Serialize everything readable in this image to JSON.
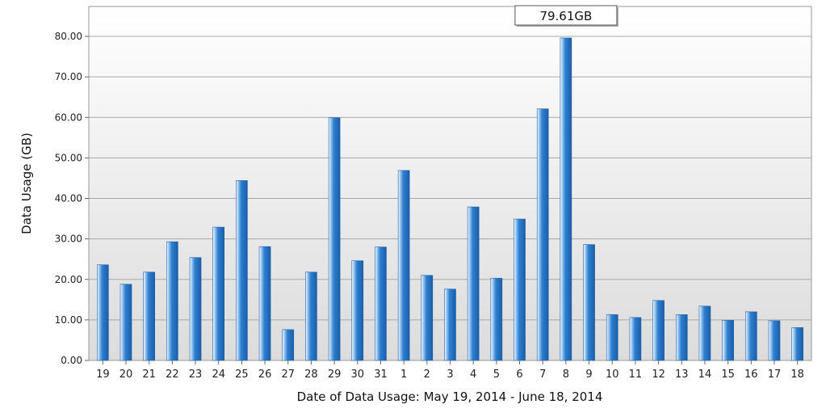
{
  "chart_data": {
    "type": "bar",
    "xlabel": "Date of Data Usage: May 19, 2014 - June 18, 2014",
    "ylabel": "Data Usage (GB)",
    "ylim": [
      0,
      80
    ],
    "yticks": [
      "0.00",
      "10.00",
      "20.00",
      "30.00",
      "40.00",
      "50.00",
      "60.00",
      "70.00",
      "80.00"
    ],
    "grid": true,
    "categories": [
      "19",
      "20",
      "21",
      "22",
      "23",
      "24",
      "25",
      "26",
      "27",
      "28",
      "29",
      "30",
      "31",
      "1",
      "2",
      "3",
      "4",
      "5",
      "6",
      "7",
      "8",
      "9",
      "10",
      "11",
      "12",
      "13",
      "14",
      "15",
      "16",
      "17",
      "18"
    ],
    "values": [
      23.6,
      18.8,
      21.8,
      29.3,
      25.4,
      32.9,
      44.4,
      28.1,
      7.6,
      21.8,
      59.9,
      24.6,
      28.0,
      46.9,
      21.0,
      17.6,
      37.9,
      20.3,
      34.9,
      62.1,
      79.61,
      28.6,
      11.3,
      10.6,
      14.8,
      11.3,
      13.4,
      9.9,
      12.0,
      9.8,
      8.1
    ],
    "bar_color": "#2e7fd0",
    "annotation": {
      "category": "8",
      "text": "79.61GB"
    }
  }
}
